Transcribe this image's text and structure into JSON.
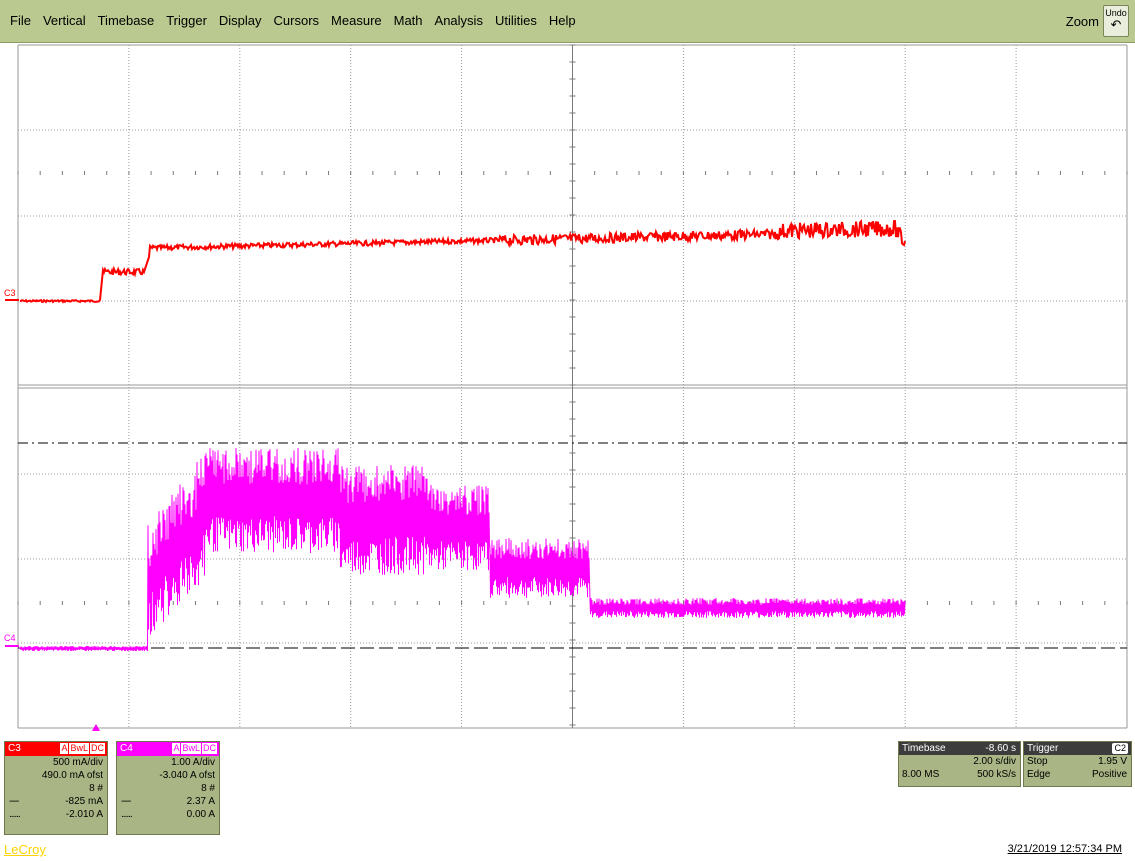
{
  "menu": {
    "items": [
      "File",
      "Vertical",
      "Timebase",
      "Trigger",
      "Display",
      "Cursors",
      "Measure",
      "Math",
      "Analysis",
      "Utilities",
      "Help"
    ],
    "zoom_label": "Zoom",
    "undo_label": "Undo"
  },
  "channels": {
    "c3": {
      "label": "C3",
      "color": "#ff0000",
      "flags": [
        "A",
        "BwL",
        "DC"
      ],
      "scale": "500 mA/div",
      "offset": "490.0 mA ofst",
      "sweeps": "8 #",
      "cursor1": "-825 mA",
      "cursor2": "-2.010 A",
      "cursor1_lead": "----",
      "cursor2_lead": "......"
    },
    "c4": {
      "label": "C4",
      "color": "#ff00ff",
      "flags": [
        "A",
        "BwL",
        "DC"
      ],
      "scale": "1.00 A/div",
      "offset": "-3.040 A ofst",
      "sweeps": "8 #",
      "cursor1": "2.37 A",
      "cursor2": "0.00 A",
      "cursor1_lead": "----",
      "cursor2_lead": "......"
    }
  },
  "timebase": {
    "title": "Timebase",
    "delay": "-8.60 s",
    "scale": "2.00 s/div",
    "samples": "8.00 MS",
    "rate": "500 kS/s"
  },
  "trigger": {
    "title": "Trigger",
    "source": "C2",
    "mode": "Stop",
    "level": "1.95 V",
    "type": "Edge",
    "slope": "Positive"
  },
  "brand": "LeCroy",
  "datestamp": "3/21/2019 12:57:34 PM",
  "trace_labels": {
    "c3": "C3",
    "c4": "C4"
  },
  "colors": {
    "menubar": "#b9c98f",
    "c3": "#ff0000",
    "c4": "#ff00ff",
    "descriptor_bg": "#a9b585"
  }
}
